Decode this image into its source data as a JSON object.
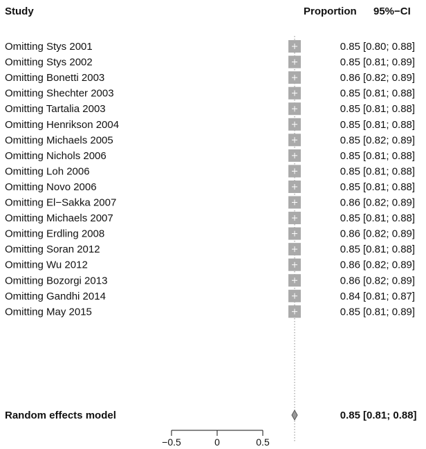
{
  "chart_data": {
    "type": "forest",
    "headers": {
      "study": "Study",
      "proportion": "Proportion",
      "ci": "95%−CI"
    },
    "studies": [
      {
        "label": "Omitting Stys 2001",
        "proportion": 0.85,
        "ci_lower": 0.8,
        "ci_upper": 0.88,
        "proportion_text": "0.85",
        "ci_text": "[0.80; 0.88]"
      },
      {
        "label": "Omitting Stys 2002",
        "proportion": 0.85,
        "ci_lower": 0.81,
        "ci_upper": 0.89,
        "proportion_text": "0.85",
        "ci_text": "[0.81; 0.89]"
      },
      {
        "label": "Omitting Bonetti 2003",
        "proportion": 0.86,
        "ci_lower": 0.82,
        "ci_upper": 0.89,
        "proportion_text": "0.86",
        "ci_text": "[0.82; 0.89]"
      },
      {
        "label": "Omitting Shechter 2003",
        "proportion": 0.85,
        "ci_lower": 0.81,
        "ci_upper": 0.88,
        "proportion_text": "0.85",
        "ci_text": "[0.81; 0.88]"
      },
      {
        "label": "Omitting Tartalia 2003",
        "proportion": 0.85,
        "ci_lower": 0.81,
        "ci_upper": 0.88,
        "proportion_text": "0.85",
        "ci_text": "[0.81; 0.88]"
      },
      {
        "label": "Omitting Henrikson 2004",
        "proportion": 0.85,
        "ci_lower": 0.81,
        "ci_upper": 0.88,
        "proportion_text": "0.85",
        "ci_text": "[0.81; 0.88]"
      },
      {
        "label": "Omitting Michaels 2005",
        "proportion": 0.85,
        "ci_lower": 0.82,
        "ci_upper": 0.89,
        "proportion_text": "0.85",
        "ci_text": "[0.82; 0.89]"
      },
      {
        "label": "Omitting Nichols 2006",
        "proportion": 0.85,
        "ci_lower": 0.81,
        "ci_upper": 0.88,
        "proportion_text": "0.85",
        "ci_text": "[0.81; 0.88]"
      },
      {
        "label": "Omitting Loh 2006",
        "proportion": 0.85,
        "ci_lower": 0.81,
        "ci_upper": 0.88,
        "proportion_text": "0.85",
        "ci_text": "[0.81; 0.88]"
      },
      {
        "label": "Omitting Novo 2006",
        "proportion": 0.85,
        "ci_lower": 0.81,
        "ci_upper": 0.88,
        "proportion_text": "0.85",
        "ci_text": "[0.81; 0.88]"
      },
      {
        "label": "Omitting El−Sakka 2007",
        "proportion": 0.86,
        "ci_lower": 0.82,
        "ci_upper": 0.89,
        "proportion_text": "0.86",
        "ci_text": "[0.82; 0.89]"
      },
      {
        "label": "Omitting Michaels 2007",
        "proportion": 0.85,
        "ci_lower": 0.81,
        "ci_upper": 0.88,
        "proportion_text": "0.85",
        "ci_text": "[0.81; 0.88]"
      },
      {
        "label": "Omitting Erdling 2008",
        "proportion": 0.86,
        "ci_lower": 0.82,
        "ci_upper": 0.89,
        "proportion_text": "0.86",
        "ci_text": "[0.82; 0.89]"
      },
      {
        "label": "Omitting Soran 2012",
        "proportion": 0.85,
        "ci_lower": 0.81,
        "ci_upper": 0.88,
        "proportion_text": "0.85",
        "ci_text": "[0.81; 0.88]"
      },
      {
        "label": "Omitting Wu 2012",
        "proportion": 0.86,
        "ci_lower": 0.82,
        "ci_upper": 0.89,
        "proportion_text": "0.86",
        "ci_text": "[0.82; 0.89]"
      },
      {
        "label": "Omitting Bozorgi 2013",
        "proportion": 0.86,
        "ci_lower": 0.82,
        "ci_upper": 0.89,
        "proportion_text": "0.86",
        "ci_text": "[0.82; 0.89]"
      },
      {
        "label": "Omitting Gandhi 2014",
        "proportion": 0.84,
        "ci_lower": 0.81,
        "ci_upper": 0.87,
        "proportion_text": "0.84",
        "ci_text": "[0.81; 0.87]"
      },
      {
        "label": "Omitting May 2015",
        "proportion": 0.85,
        "ci_lower": 0.81,
        "ci_upper": 0.89,
        "proportion_text": "0.85",
        "ci_text": "[0.81; 0.89]"
      }
    ],
    "summary": {
      "label": "Random effects model",
      "proportion": 0.85,
      "ci_lower": 0.81,
      "ci_upper": 0.88,
      "proportion_text": "0.85",
      "ci_text": "[0.81; 0.88]"
    },
    "x_axis": {
      "ticks": [
        -0.5,
        0,
        0.5
      ],
      "tick_labels": [
        "−0.5",
        "0",
        "0.5"
      ],
      "range": [
        -0.5,
        0.5
      ]
    },
    "colors": {
      "square": "#aaaaaa",
      "square_cross": "#ffffff",
      "diamond_fill": "#999999",
      "diamond_stroke": "#555555",
      "reference_line": "#888888",
      "text": "#111111"
    }
  }
}
